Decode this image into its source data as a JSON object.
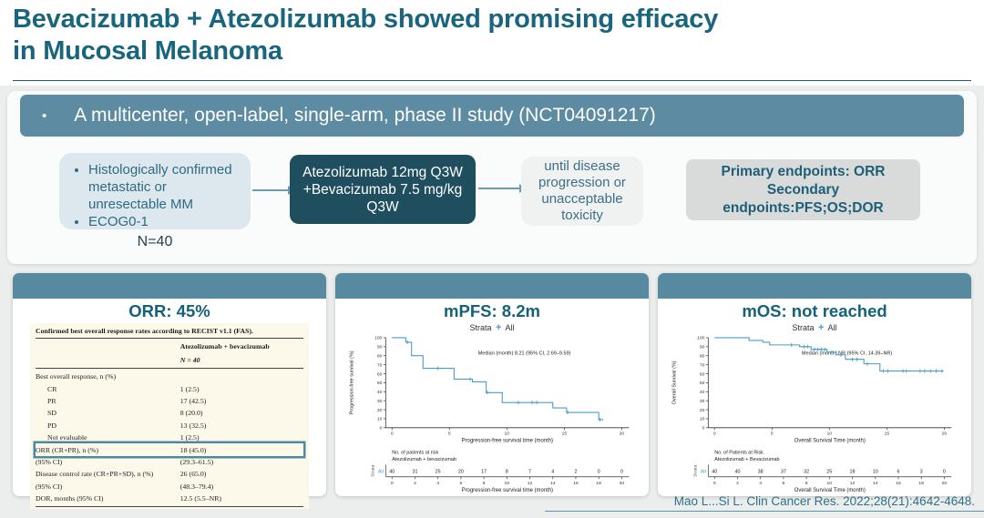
{
  "slide": {
    "title_line1": "Bevacizumab + Atezolizumab showed promising efficacy",
    "title_line2": "in Mucosal Melanoma",
    "citation": "Mao L...Si L. Clin Cancer Res. 2022;28(21):4642-4648."
  },
  "banner": {
    "bullet": "•",
    "text": "A multicenter, open-label, single-arm, phase II study (NCT04091217)"
  },
  "flow": {
    "inclusion_box": {
      "items": [
        "Histologically confirmed metastatic or unresectable MM",
        "ECOG0-1"
      ],
      "n_label": "N=40"
    },
    "treatment_box": {
      "lines": [
        "Atezolizumab 12mg Q3W",
        "+Bevacizumab 7.5 mg/kg",
        "Q3W"
      ]
    },
    "duration_box": {
      "text": "until disease progression or unacceptable toxicity"
    },
    "endpoints_box": {
      "lines": [
        "Primary endpoints: ORR",
        "Secondary",
        "endpoints:PFS;OS;DOR"
      ]
    }
  },
  "orr_panel": {
    "title": "ORR: 45%",
    "table": {
      "caption": "Confirmed best overall response rates according to RECIST v1.1 (FAS).",
      "col_header": "Atezolizumab + bevacizumab",
      "col_subheader": "N = 40",
      "rows": [
        {
          "label": "Best overall response, n (%)",
          "value": "",
          "indent": false,
          "highlight": false
        },
        {
          "label": "CR",
          "value": "1 (2.5)",
          "indent": true,
          "highlight": false
        },
        {
          "label": "PR",
          "value": "17 (42.5)",
          "indent": true,
          "highlight": false
        },
        {
          "label": "SD",
          "value": "8 (20.0)",
          "indent": true,
          "highlight": false
        },
        {
          "label": "PD",
          "value": "13 (32.5)",
          "indent": true,
          "highlight": false
        },
        {
          "label": "Not evaluable",
          "value": "1 (2.5)",
          "indent": true,
          "highlight": false
        },
        {
          "label": "ORR (CR+PR), n (%)",
          "value": "18 (45.0)",
          "indent": false,
          "highlight": true
        },
        {
          "label": "(95% CI)",
          "value": "(29.3–61.5)",
          "indent": false,
          "highlight": false
        },
        {
          "label": "Disease control rate (CR+PR+SD), n (%)",
          "value": "26 (65.0)",
          "indent": false,
          "highlight": false
        },
        {
          "label": "(95% CI)",
          "value": "(48.3–79.4)",
          "indent": false,
          "highlight": false
        },
        {
          "label": "DOR, months (95% CI)",
          "value": "12.5 (5.5–NR)",
          "indent": false,
          "highlight": false
        }
      ]
    }
  },
  "chart_data": [
    {
      "type": "line",
      "subtype": "kaplan-meier",
      "panel_title": "mPFS: 8.2m",
      "legend": {
        "label": "Strata",
        "marker": "+",
        "series": "All"
      },
      "annotation": "Median (month) 8.21 (95% CI, 2.69–9.59)",
      "ylabel": "Progression-free survival (%)",
      "xlabel": "Progression-free survival time (month)",
      "xlim": [
        0,
        20
      ],
      "ylim": [
        0,
        100
      ],
      "xticks": [
        0,
        5,
        10,
        15,
        20
      ],
      "yticks": [
        0,
        10,
        20,
        30,
        40,
        50,
        60,
        70,
        80,
        90,
        100
      ],
      "steps": [
        [
          0,
          100
        ],
        [
          1.2,
          100
        ],
        [
          1.2,
          95
        ],
        [
          1.7,
          95
        ],
        [
          1.7,
          80
        ],
        [
          2.7,
          80
        ],
        [
          2.7,
          66
        ],
        [
          5.4,
          66
        ],
        [
          5.4,
          54
        ],
        [
          7.0,
          54
        ],
        [
          7.0,
          51
        ],
        [
          8.2,
          51
        ],
        [
          8.2,
          39
        ],
        [
          9.6,
          39
        ],
        [
          9.6,
          28
        ],
        [
          14,
          28
        ],
        [
          14,
          22
        ],
        [
          15.2,
          22
        ],
        [
          15.2,
          17
        ],
        [
          18,
          17
        ],
        [
          18,
          9
        ],
        [
          18.4,
          9
        ]
      ],
      "censors": [
        [
          1.35,
          95
        ],
        [
          4.0,
          66
        ],
        [
          6.8,
          54
        ],
        [
          8.3,
          39
        ],
        [
          11,
          28
        ],
        [
          12.2,
          28
        ],
        [
          12.6,
          28
        ],
        [
          15.3,
          17
        ],
        [
          18.1,
          9
        ]
      ],
      "risk_table": {
        "header1": "No. of patients at risk",
        "header2": "Atezolizumab + bevacizumab",
        "strata_label": "Strata",
        "series": "All",
        "times": [
          0,
          2,
          4,
          6,
          8,
          10,
          12,
          14,
          16,
          18,
          20
        ],
        "values": [
          40,
          31,
          25,
          20,
          17,
          8,
          7,
          4,
          2,
          0,
          0
        ],
        "xlabel": "Progression-free survival time (month)"
      }
    },
    {
      "type": "line",
      "subtype": "kaplan-meier",
      "panel_title": "mOS: not reached",
      "legend": {
        "label": "Strata",
        "marker": "+",
        "series": "All"
      },
      "annotation": "Median (month) NR (95% CI, 14.39–NR)",
      "ylabel": "Overall Survival (%)",
      "xlabel": "Overall Survival Time (month)",
      "xlim": [
        0,
        20
      ],
      "ylim": [
        0,
        100
      ],
      "xticks": [
        0,
        5,
        10,
        15,
        20
      ],
      "yticks": [
        0,
        10,
        20,
        30,
        40,
        50,
        60,
        70,
        80,
        90,
        100
      ],
      "steps": [
        [
          0,
          100
        ],
        [
          3.0,
          100
        ],
        [
          3.0,
          97
        ],
        [
          4.2,
          97
        ],
        [
          4.2,
          95
        ],
        [
          4.8,
          95
        ],
        [
          4.8,
          92
        ],
        [
          7.4,
          92
        ],
        [
          7.4,
          90
        ],
        [
          8.4,
          90
        ],
        [
          8.4,
          87
        ],
        [
          9.8,
          87
        ],
        [
          9.8,
          84
        ],
        [
          10.6,
          84
        ],
        [
          10.6,
          81
        ],
        [
          11.4,
          81
        ],
        [
          11.4,
          76
        ],
        [
          13.0,
          76
        ],
        [
          13.0,
          71
        ],
        [
          14.4,
          71
        ],
        [
          14.4,
          63
        ],
        [
          19.9,
          63
        ]
      ],
      "censors": [
        [
          6.7,
          92
        ],
        [
          7.8,
          90
        ],
        [
          8.1,
          90
        ],
        [
          8.7,
          87
        ],
        [
          9.0,
          87
        ],
        [
          9.3,
          87
        ],
        [
          9.6,
          87
        ],
        [
          10.2,
          84
        ],
        [
          11.0,
          81
        ],
        [
          12.0,
          76
        ],
        [
          12.4,
          76
        ],
        [
          13.3,
          71
        ],
        [
          14.7,
          63
        ],
        [
          15.1,
          63
        ],
        [
          16.4,
          63
        ],
        [
          16.7,
          63
        ],
        [
          17.9,
          63
        ],
        [
          18.3,
          63
        ],
        [
          18.8,
          63
        ],
        [
          19.3,
          63
        ],
        [
          19.8,
          63
        ]
      ],
      "risk_table": {
        "header1": "No. of Patients at Risk",
        "header2": "Atezolizumab + Bevacizumab",
        "strata_label": "Strata",
        "series": "All",
        "times": [
          0,
          2,
          4,
          6,
          8,
          10,
          12,
          14,
          16,
          18,
          20
        ],
        "values": [
          40,
          40,
          38,
          37,
          32,
          25,
          18,
          10,
          6,
          3,
          0
        ],
        "xlabel": "Overall Survival Time (month)"
      }
    }
  ],
  "colors": {
    "title_teal": "#19657d",
    "banner_teal": "#5d8ca2",
    "panel_bar_teal": "#578aa1",
    "dark_box": "#1f4e5e",
    "curve_blue": "#4c9bc8",
    "highlight_border": "#4a8aa2",
    "table_bg": "#fcf9ea"
  }
}
